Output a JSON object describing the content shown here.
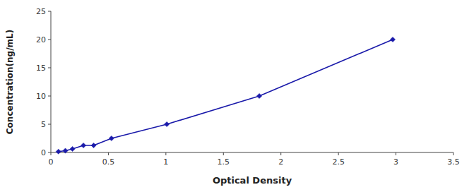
{
  "chart_data": {
    "type": "line",
    "x": [
      0.066,
      0.126,
      0.188,
      0.283,
      0.372,
      0.527,
      1.008,
      1.812,
      2.972
    ],
    "values": [
      0.156,
      0.312,
      0.625,
      1.25,
      1.25,
      2.5,
      5.0,
      10.0,
      20.0
    ],
    "xlabel": "Optical Density",
    "ylabel": "Concentration(ng/mL)",
    "xlim": [
      0,
      3.5
    ],
    "ylim": [
      0,
      25
    ],
    "xticks": [
      0,
      0.5,
      1,
      1.5,
      2,
      2.5,
      3,
      3.5
    ],
    "yticks": [
      0,
      5,
      10,
      15,
      20,
      25
    ],
    "color": "#1a1aaa",
    "marker": "diamond",
    "line_style": "solid",
    "grid": false
  }
}
